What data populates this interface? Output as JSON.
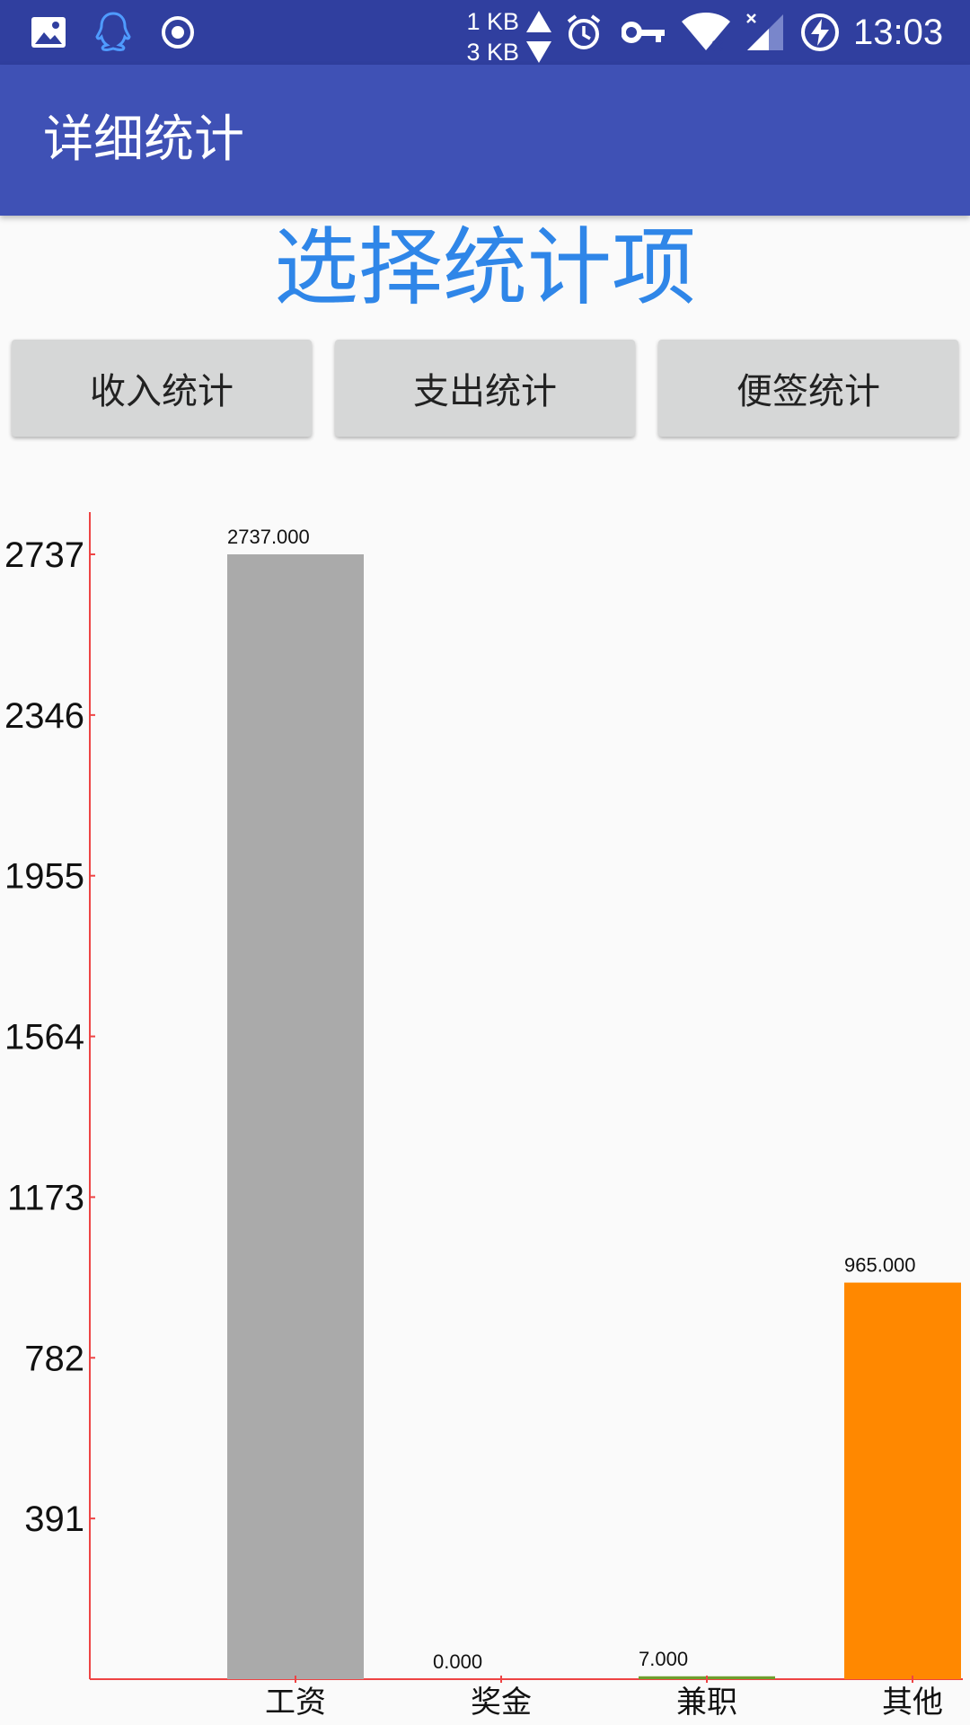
{
  "status_bar": {
    "net_up": "1 KB",
    "net_down": "3 KB",
    "time": "13:03",
    "icons": [
      "gallery-icon",
      "qq-icon",
      "record-icon",
      "alarm-icon",
      "vpn-key-icon",
      "wifi-icon",
      "signal-icon",
      "battery-charging-icon"
    ]
  },
  "app_bar": {
    "title": "详细统计"
  },
  "heading": "选择统计项",
  "buttons": [
    "收入统计",
    "支出统计",
    "便签统计"
  ],
  "colors": {
    "status_bar": "#303f9f",
    "app_bar": "#3f51b5",
    "heading": "#2f86e8",
    "axis": "#ee4444"
  },
  "chart_data": {
    "type": "bar",
    "categories": [
      "工资",
      "奖金",
      "兼职",
      "其他"
    ],
    "values": [
      2737,
      0,
      7,
      965
    ],
    "value_labels": [
      "2737.000",
      "0.000",
      "7.000",
      "965.000"
    ],
    "colors": [
      "#aaaaaa",
      "#e07070",
      "#6e9e2e",
      "#ff8800"
    ],
    "y_ticks": [
      391,
      782,
      1173,
      1564,
      1955,
      2346,
      2737
    ],
    "ylim": [
      0,
      2737
    ],
    "xlabel": "",
    "ylabel": "",
    "title": ""
  }
}
